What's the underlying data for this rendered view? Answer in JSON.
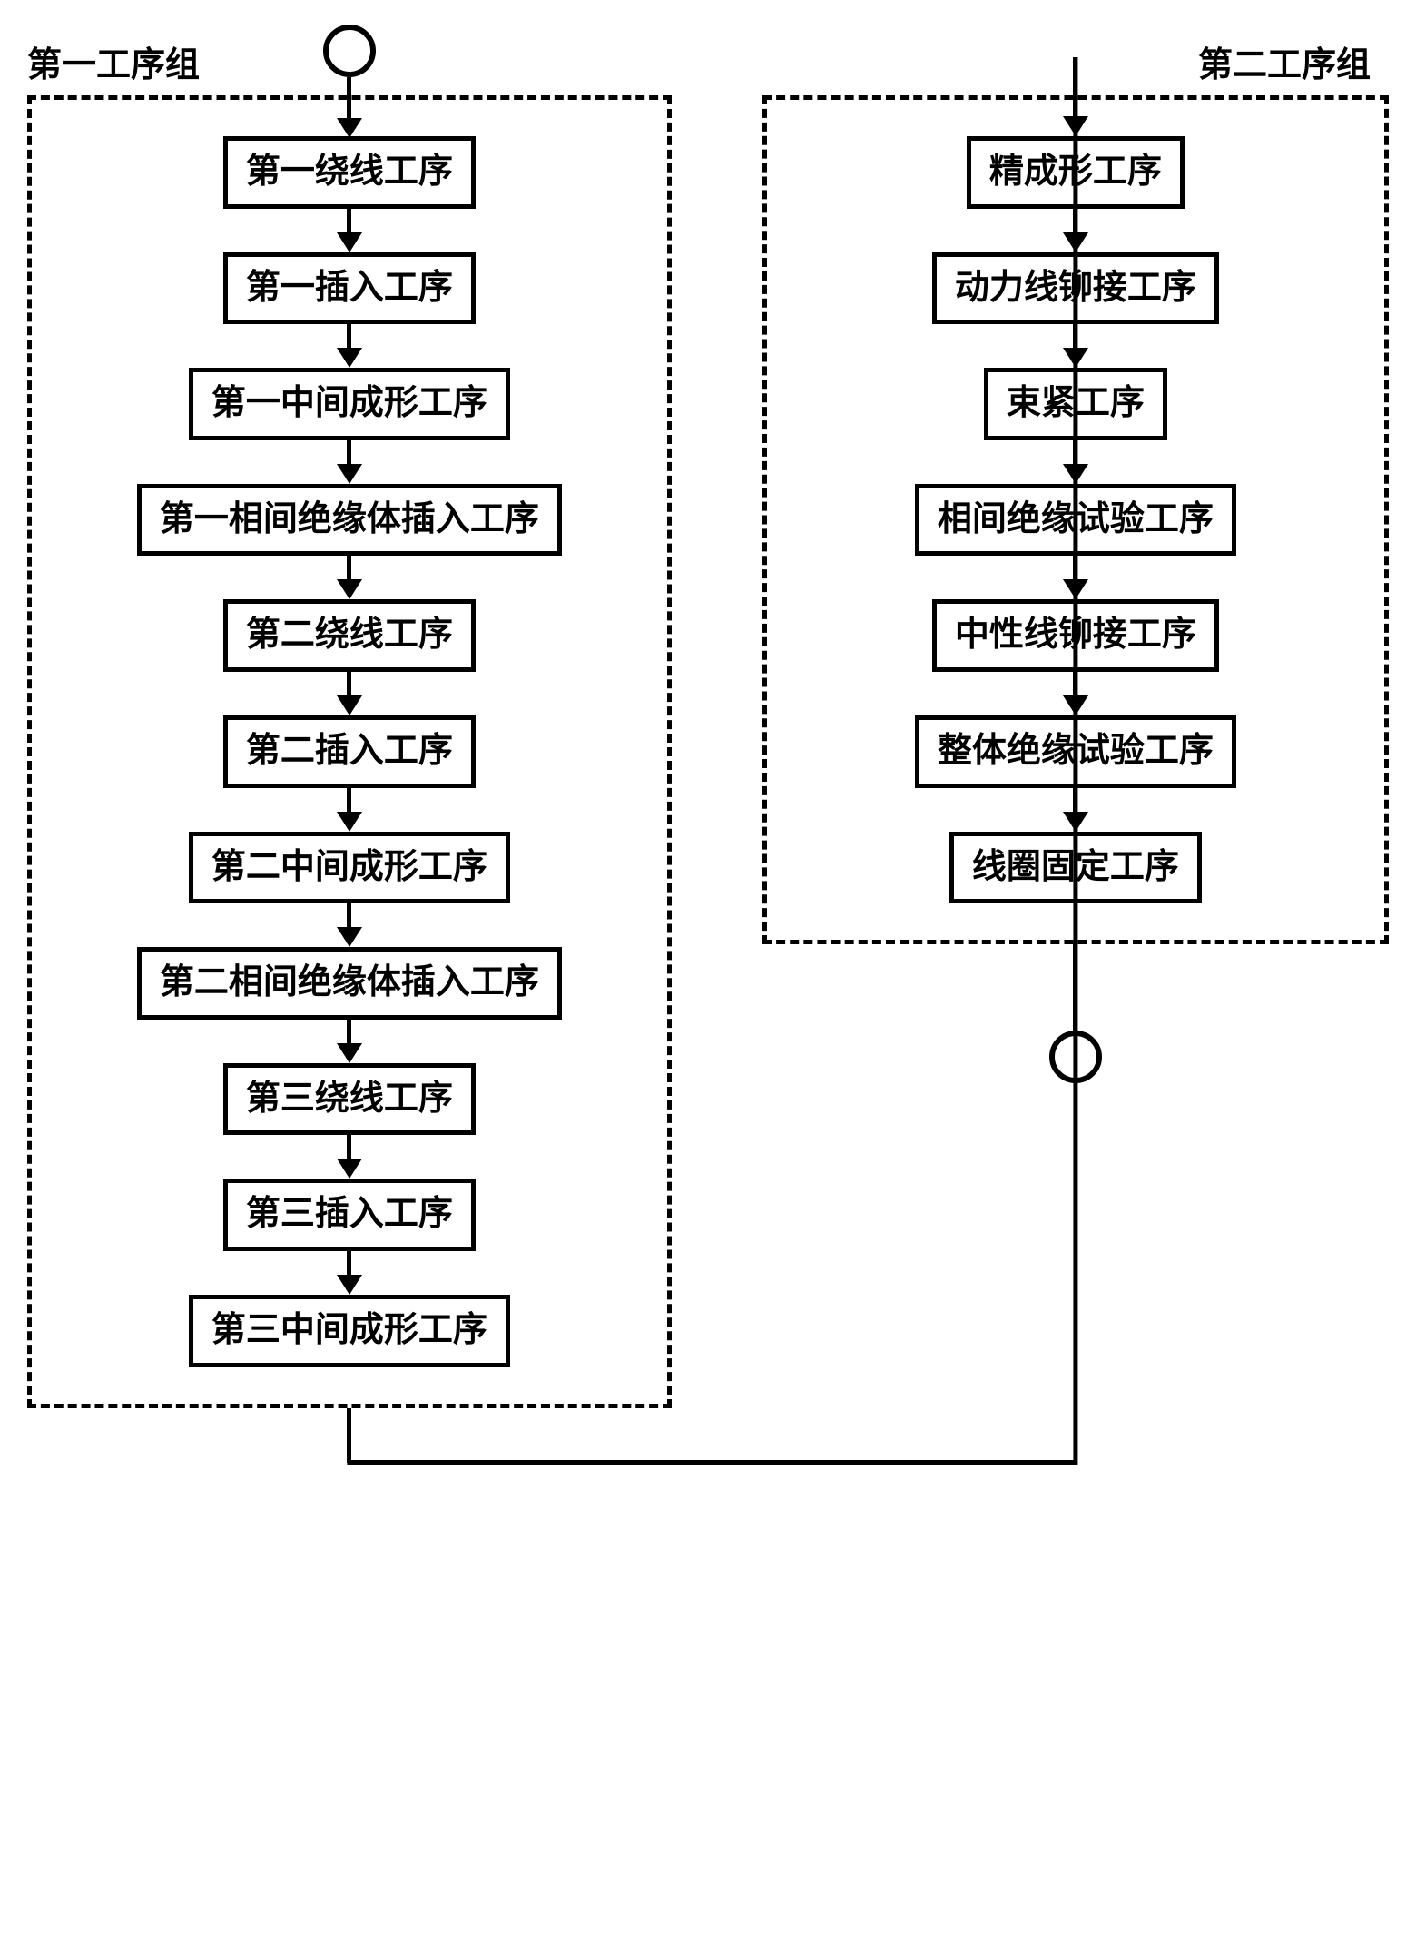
{
  "diagram": {
    "type": "flowchart",
    "background_color": "#ffffff",
    "stroke_color": "#000000",
    "text_color": "#000000",
    "font_family": "SimSun",
    "title_fontsize": 38,
    "step_fontsize": 38,
    "box_border_width": 5,
    "dashed_border_width": 5,
    "arrow_head_size": 22,
    "circle_diameter": 58,
    "circle_border_width": 6,
    "group1": {
      "label": "第一工序组",
      "steps": [
        "第一绕线工序",
        "第一插入工序",
        "第一中间成形工序",
        "第一相间绝缘体插入工序",
        "第二绕线工序",
        "第二插入工序",
        "第二中间成形工序",
        "第二相间绝缘体插入工序",
        "第三绕线工序",
        "第三插入工序",
        "第三中间成形工序"
      ]
    },
    "group2": {
      "label": "第二工序组",
      "steps": [
        "精成形工序",
        "动力线铆接工序",
        "束紧工序",
        "相间绝缘试验工序",
        "中性线铆接工序",
        "整体绝缘试验工序",
        "线圈固定工序"
      ]
    }
  }
}
